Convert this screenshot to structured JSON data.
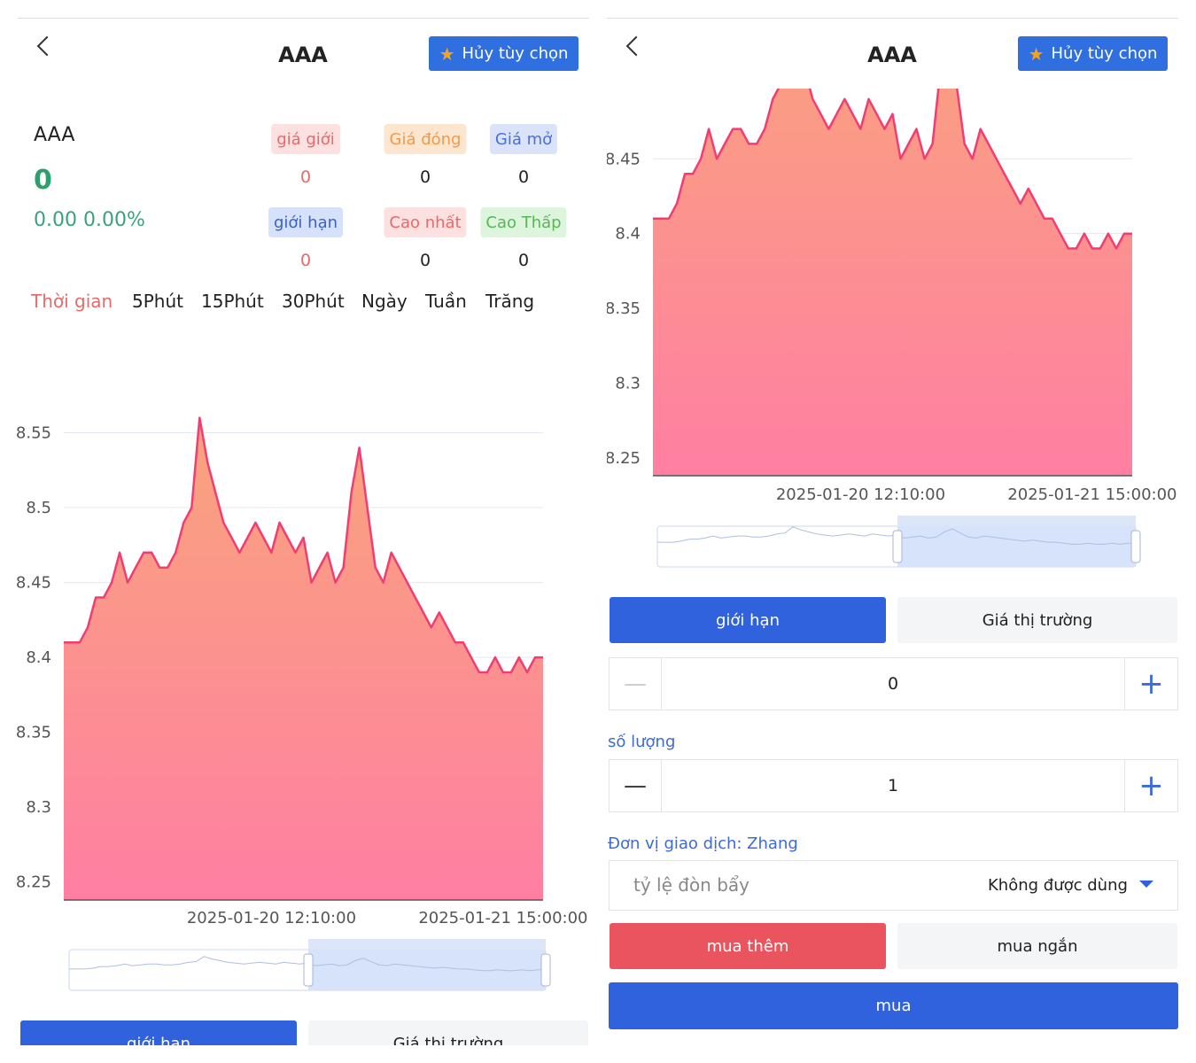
{
  "screens": [
    {
      "header": {
        "title": "AAA",
        "action": "Hủy tùy chọn"
      },
      "quote": {
        "name": "AAA",
        "price": 0,
        "change": "0.00 0.00%",
        "stats": [
          {
            "label": "giá giới",
            "value": 0
          },
          {
            "label": "Giá đóng",
            "value": 0
          },
          {
            "label": "Giá mở",
            "value": 0
          },
          {
            "label": "giới hạn",
            "value": 0
          },
          {
            "label": "Cao nhất",
            "value": 0
          },
          {
            "label": "Cao Thấp",
            "value": 0
          }
        ]
      },
      "periods": [
        "Thời gian",
        "5Phút",
        "15Phút",
        "30Phút",
        "Ngày",
        "Tuần",
        "Trăng"
      ],
      "order_tabs": [
        "giới hạn",
        "Giá thị trường"
      ]
    },
    {
      "header": {
        "title": "AAA",
        "action": "Hủy tùy chọn"
      },
      "order": {
        "tabs": [
          "giới hạn",
          "Giá thị trường"
        ],
        "price": 0,
        "quantity_label": "số lượng",
        "quantity": 1,
        "unit": "Đơn vị giao dịch: Zhang",
        "leverage_label": "tỷ lệ đòn bẩy",
        "leverage_value": "Không được dùng",
        "sides": [
          "mua thêm",
          "mua ngắn"
        ],
        "submit": "mua"
      }
    }
  ],
  "chart_data": [
    {
      "type": "area",
      "color": "#f23d72",
      "grid": true,
      "ylim": [
        8.238,
        8.558
      ],
      "yticks": [
        8.25,
        8.3,
        8.35,
        8.4,
        8.45,
        8.5,
        8.55
      ],
      "categories": [
        null,
        null,
        null,
        null,
        null,
        null,
        null,
        null,
        null,
        null,
        null,
        null,
        null,
        null,
        null,
        null,
        null,
        null,
        null,
        null,
        null,
        null,
        null,
        null,
        null,
        null,
        "2025-01-20 12:10:00",
        null,
        null,
        null,
        null,
        null,
        null,
        null,
        null,
        null,
        null,
        null,
        null,
        null,
        null,
        null,
        null,
        null,
        null,
        null,
        null,
        null,
        null,
        null,
        null,
        null,
        null,
        null,
        null,
        "2025-01-21 15:00:00",
        null,
        null,
        null,
        null,
        null
      ],
      "values": [
        8.41,
        8.41,
        8.41,
        8.42,
        8.44,
        8.44,
        8.45,
        8.47,
        8.45,
        8.46,
        8.47,
        8.47,
        8.46,
        8.46,
        8.47,
        8.49,
        8.5,
        8.56,
        8.53,
        8.51,
        8.49,
        8.48,
        8.47,
        8.48,
        8.49,
        8.48,
        8.47,
        8.49,
        8.48,
        8.47,
        8.48,
        8.45,
        8.46,
        8.47,
        8.45,
        8.46,
        8.51,
        8.54,
        8.5,
        8.46,
        8.45,
        8.47,
        8.46,
        8.45,
        8.44,
        8.43,
        8.42,
        8.43,
        8.42,
        8.41,
        8.41,
        8.4,
        8.39,
        8.39,
        8.4,
        8.39,
        8.39,
        8.4,
        8.39,
        8.4,
        8.4
      ]
    },
    {
      "type": "area",
      "color": "#f23d72",
      "grid": true,
      "ylim": [
        8.238,
        8.497
      ],
      "yticks": [
        8.25,
        8.3,
        8.35,
        8.4,
        8.45
      ],
      "categories": [
        null,
        null,
        null,
        null,
        null,
        null,
        null,
        null,
        null,
        null,
        null,
        null,
        null,
        null,
        null,
        null,
        null,
        null,
        null,
        null,
        null,
        null,
        null,
        null,
        null,
        null,
        "2025-01-20 12:10:00",
        null,
        null,
        null,
        null,
        null,
        null,
        null,
        null,
        null,
        null,
        null,
        null,
        null,
        null,
        null,
        null,
        null,
        null,
        null,
        null,
        null,
        null,
        null,
        null,
        null,
        null,
        null,
        null,
        "2025-01-21 15:00:00",
        null,
        null,
        null,
        null,
        null
      ],
      "values": [
        8.41,
        8.41,
        8.41,
        8.42,
        8.44,
        8.44,
        8.45,
        8.47,
        8.45,
        8.46,
        8.47,
        8.47,
        8.46,
        8.46,
        8.47,
        8.49,
        8.5,
        8.56,
        8.53,
        8.51,
        8.49,
        8.48,
        8.47,
        8.48,
        8.49,
        8.48,
        8.47,
        8.49,
        8.48,
        8.47,
        8.48,
        8.45,
        8.46,
        8.47,
        8.45,
        8.46,
        8.51,
        8.54,
        8.5,
        8.46,
        8.45,
        8.47,
        8.46,
        8.45,
        8.44,
        8.43,
        8.42,
        8.43,
        8.42,
        8.41,
        8.41,
        8.4,
        8.39,
        8.39,
        8.4,
        8.39,
        8.39,
        8.4,
        8.39,
        8.4,
        8.4
      ]
    }
  ]
}
